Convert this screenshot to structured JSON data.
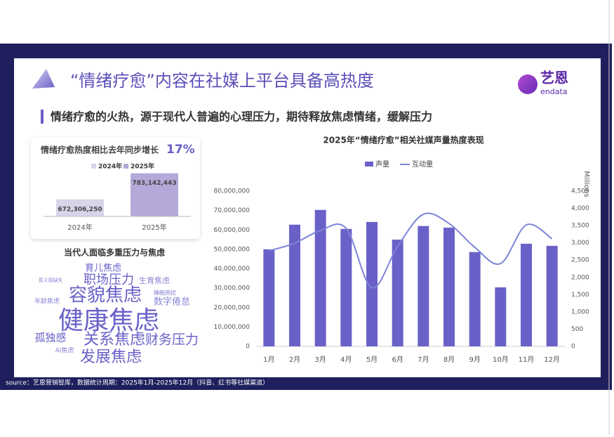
{
  "title": "“情绪疗愈”内容在社媒上平台具备高热度",
  "subtitle": "情绪疗愈的火热，源于现代人普遍的心理压力，期待释放焦虑情绪，缓解压力",
  "logo": {
    "name": "艺恩",
    "brand": "endata"
  },
  "source": "source：艺恩营销智库，数据统计周期：2025年1月-2025年12月（抖音、红书等社媒渠道）",
  "word_cloud": {
    "title": "当代人面临多重压力与焦虑",
    "words": [
      "育儿焦虑",
      "职场压力",
      "生育焦虑",
      "意义感缺失",
      "容貌焦虑",
      "睡眠困扰",
      "数字倦怠",
      "年龄焦虑",
      "健康焦虑",
      "孤独感",
      "关系焦虑",
      "财务压力",
      "AI焦虑",
      "发展焦虑"
    ]
  },
  "chart_data": [
    {
      "type": "bar",
      "title": "情绪疗愈热度相比去年同步增长",
      "growth": {
        "value": 17,
        "label": "17%"
      },
      "categories": [
        "2024年",
        "2025年"
      ],
      "values": [
        672306250,
        783142443
      ],
      "value_labels": [
        "672,306,250",
        "783,142,443"
      ],
      "colors": [
        "#d9d4ea",
        "#b4a9d9"
      ],
      "ylim": [
        600000000,
        800000000
      ]
    },
    {
      "type": "combo",
      "title": "2025年“情绪疗愈”相关社媒声量热度表现",
      "categories": [
        "1月",
        "2月",
        "3月",
        "4月",
        "5月",
        "6月",
        "7月",
        "8月",
        "9月",
        "10月",
        "11月",
        "12月"
      ],
      "series": [
        {
          "name": "声量",
          "color": "#6a61c8",
          "type": "bar",
          "values": [
            50000000,
            62700000,
            70300000,
            60500000,
            64100000,
            55000000,
            62000000,
            61200000,
            48600000,
            30400000,
            52900000,
            51800000
          ]
        },
        {
          "name": "互动量",
          "color": "#7c84d8",
          "type": "line",
          "axis": "y2",
          "values": [
            2770,
            2990,
            3360,
            3420,
            1700,
            2900,
            3830,
            3560,
            2870,
            2400,
            3520,
            3120
          ]
        }
      ],
      "ylim": [
        0,
        80000000
      ],
      "yticks": [
        0,
        {
          "value": 10000000,
          "label": "10,000,000"
        },
        {
          "value": 20000000,
          "label": "20,000,000"
        },
        {
          "value": 30000000,
          "label": "30,000,000"
        },
        {
          "value": 40000000,
          "label": "40,000,000"
        },
        {
          "value": 50000000,
          "label": "50,000,000"
        },
        {
          "value": 60000000,
          "label": "60,000,000"
        },
        {
          "value": 70000000,
          "label": "70,000,000"
        },
        {
          "value": 80000000,
          "label": "80,000,000"
        }
      ],
      "y2lim": [
        0,
        4500
      ],
      "y2ticks": [
        0,
        500,
        {
          "value": 1000,
          "label": "1,000"
        },
        {
          "value": 1500,
          "label": "1,500"
        },
        {
          "value": 2000,
          "label": "2,000"
        },
        {
          "value": 2500,
          "label": "2,500"
        },
        {
          "value": 3000,
          "label": "3,000"
        },
        {
          "value": 3500,
          "label": "3,500"
        },
        {
          "value": 4000,
          "label": "4,000"
        },
        {
          "value": 4500,
          "label": "4,500"
        }
      ],
      "y2label": "Millions",
      "legend": "top"
    }
  ]
}
